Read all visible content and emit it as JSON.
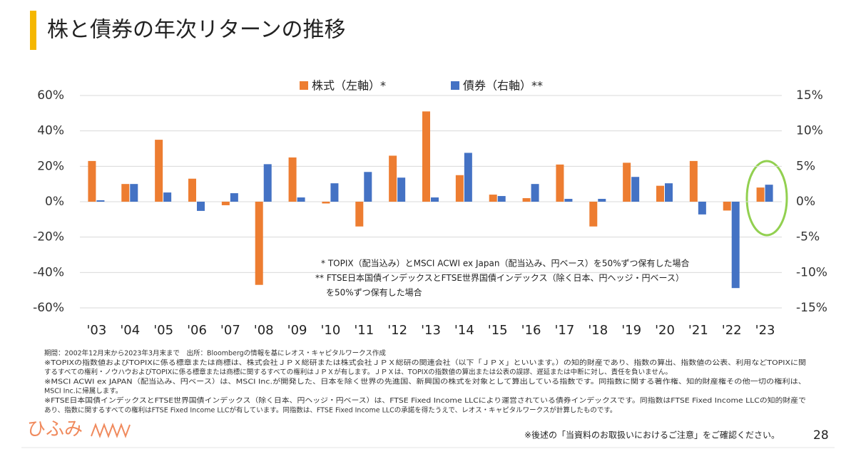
{
  "chart_data": {
    "type": "bar",
    "title": "株と債券の年次リターンの推移",
    "categories": [
      "'03",
      "'04",
      "'05",
      "'06",
      "'07",
      "'08",
      "'09",
      "'10",
      "'11",
      "'12",
      "'13",
      "'14",
      "'15",
      "'16",
      "'17",
      "'18",
      "'19",
      "'20",
      "'21",
      "'22",
      "'23"
    ],
    "series": [
      {
        "name": "株式（左軸）*",
        "color": "#ed7d31",
        "axis": "y",
        "values": [
          23,
          10,
          35,
          13,
          -2,
          -47,
          25,
          -1,
          -14,
          26,
          51,
          15,
          4,
          2,
          21,
          -14,
          22,
          9,
          23,
          -5,
          8
        ]
      },
      {
        "name": "債券（右軸）**",
        "color": "#4472c4",
        "axis": "y2",
        "values": [
          0.2,
          2.5,
          1.3,
          -1.3,
          1.2,
          5.3,
          0.6,
          2.6,
          4.2,
          3.4,
          0.6,
          6.9,
          0.8,
          2.5,
          0.4,
          0.4,
          3.5,
          2.6,
          -1.8,
          -12.2,
          2.4
        ]
      }
    ],
    "ylim": [
      -60,
      60
    ],
    "yticks": [
      {
        "value": 60,
        "label": "60%"
      },
      {
        "value": 40,
        "label": "40%"
      },
      {
        "value": 20,
        "label": "20%"
      },
      {
        "value": 0,
        "label": "0%"
      },
      {
        "value": -20,
        "label": "-20%"
      },
      {
        "value": -40,
        "label": "-40%"
      },
      {
        "value": -60,
        "label": "-60%"
      }
    ],
    "y2lim": [
      -15,
      15
    ],
    "y2ticks": [
      {
        "value": 15,
        "label": "15%"
      },
      {
        "value": 10,
        "label": "10%"
      },
      {
        "value": 5,
        "label": "5%"
      },
      {
        "value": 0,
        "label": "0%"
      },
      {
        "value": -5,
        "label": "-5%"
      },
      {
        "value": -10,
        "label": "-10%"
      },
      {
        "value": -15,
        "label": "-15%"
      }
    ],
    "grid": true,
    "legend": "top",
    "annotations": [
      "* TOPIX（配当込み）とMSCI ACWI ex Japan（配当込み、円ベース）を50%ずつ保有した場合",
      "** FTSE日本国債インデックスとFTSE世界国債インデックス（除く日本、円ヘッジ・円ベース）",
      "を50%ずつ保有した場合"
    ]
  },
  "source_notes": [
    "期間：2002年12月末から2023年3月末まで　出所：Bloombergの情報を基にレオス・キャピタルワークス作成",
    "※TOPIXの指数値およびTOPIXに係る標章または商標は、株式会社ＪＰＸ総研または株式会社ＪＰＸ総研の関連会社（以下「ＪＰＸ」といいます。）の知的財産であり、指数の算出、指数値の公表、利用などTOPIXに関",
    "するすべての権利・ノウハウおよびTOPIXに係る標章または商標に関するすべての権利はＪＰＸが有します。ＪＰＸは、TOPIXの指数値の算出または公表の誤謬、遅延または中断に対し、責任を負いません。",
    "※MSCI ACWI ex JAPAN（配当込み、円ベース）は、MSCI Inc.が開発した、日本を除く世界の先進国、新興国の株式を対象として算出している指数です。同指数に関する著作権、知的財産権その他一切の権利は、",
    "MSCI Inc.に帰属します。",
    "※FTSE日本国債インデックスとFTSE世界国債インデックス（除く日本、円ヘッジ・円ベース）は、FTSE Fixed Income LLCにより運営されている債券インデックスです。同指数はFTSE Fixed Income LLCの知的財産で",
    "あり、指数に関するすべての権利はFTSE Fixed Income LLCが有しています。同指数は、FTSE Fixed Income LLCの承諾を得たうえで、レオス・キャピタルワークスが計算したものです。"
  ],
  "logo": "ひふみ",
  "disclaimer": "※後述の「当資料のお取扱いにおけるご注意」をご確認ください。",
  "page_number": "28"
}
